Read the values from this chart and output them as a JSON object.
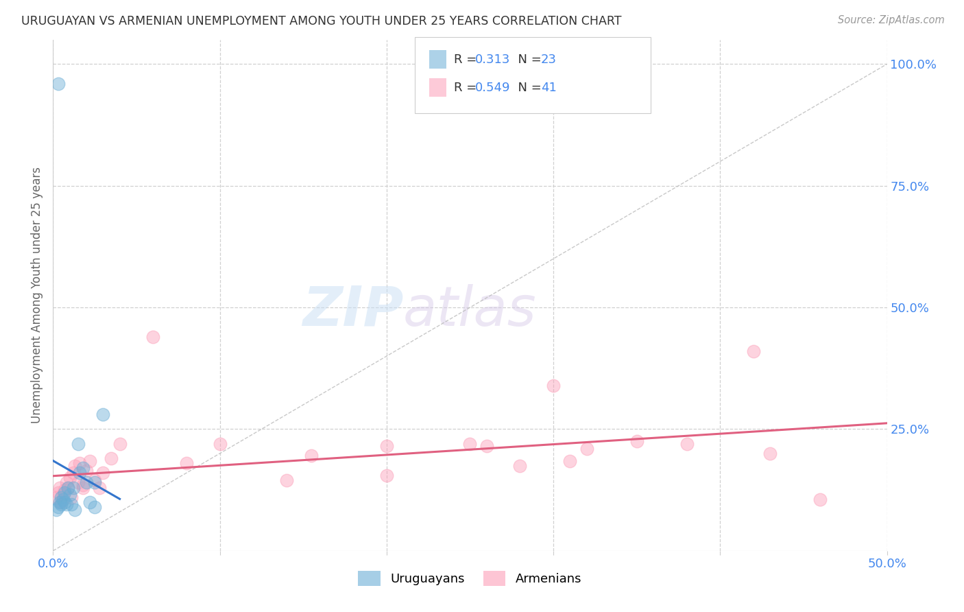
{
  "title": "URUGUAYAN VS ARMENIAN UNEMPLOYMENT AMONG YOUTH UNDER 25 YEARS CORRELATION CHART",
  "source": "Source: ZipAtlas.com",
  "ylabel": "Unemployment Among Youth under 25 years",
  "xmin": 0.0,
  "xmax": 0.5,
  "ymin": 0.0,
  "ymax": 1.05,
  "xtick_positions": [
    0.0,
    0.1,
    0.2,
    0.3,
    0.4,
    0.5
  ],
  "xtick_labels": [
    "0.0%",
    "",
    "",
    "",
    "",
    "50.0%"
  ],
  "yticks_right": [
    0.25,
    0.5,
    0.75,
    1.0
  ],
  "ytick_labels_right": [
    "25.0%",
    "50.0%",
    "75.0%",
    "100.0%"
  ],
  "uruguayan_x": [
    0.002,
    0.003,
    0.004,
    0.005,
    0.005,
    0.006,
    0.007,
    0.007,
    0.008,
    0.009,
    0.01,
    0.011,
    0.012,
    0.013,
    0.015,
    0.016,
    0.018,
    0.02,
    0.022,
    0.025,
    0.03,
    0.025,
    0.003
  ],
  "uruguayan_y": [
    0.085,
    0.09,
    0.1,
    0.095,
    0.11,
    0.105,
    0.1,
    0.12,
    0.095,
    0.13,
    0.115,
    0.095,
    0.13,
    0.085,
    0.22,
    0.16,
    0.17,
    0.14,
    0.1,
    0.09,
    0.28,
    0.14,
    0.96
  ],
  "armenian_x": [
    0.002,
    0.003,
    0.004,
    0.005,
    0.006,
    0.007,
    0.008,
    0.009,
    0.01,
    0.011,
    0.012,
    0.013,
    0.015,
    0.016,
    0.018,
    0.02,
    0.022,
    0.025,
    0.028,
    0.03,
    0.035,
    0.04,
    0.06,
    0.08,
    0.1,
    0.155,
    0.2,
    0.25,
    0.3,
    0.32,
    0.38,
    0.42,
    0.018,
    0.14,
    0.2,
    0.28,
    0.26,
    0.31,
    0.35,
    0.43,
    0.46
  ],
  "armenian_y": [
    0.11,
    0.12,
    0.13,
    0.1,
    0.115,
    0.125,
    0.14,
    0.13,
    0.15,
    0.11,
    0.16,
    0.175,
    0.14,
    0.18,
    0.135,
    0.165,
    0.185,
    0.145,
    0.13,
    0.16,
    0.19,
    0.22,
    0.44,
    0.18,
    0.22,
    0.195,
    0.215,
    0.22,
    0.34,
    0.21,
    0.22,
    0.41,
    0.13,
    0.145,
    0.155,
    0.175,
    0.215,
    0.185,
    0.225,
    0.2,
    0.105
  ],
  "uruguayan_color": "#6baed6",
  "armenian_color": "#fc9fb8",
  "uruguayan_line_color": "#3375cc",
  "armenian_line_color": "#e06080",
  "r_uruguayan": "0.313",
  "n_uruguayan": "23",
  "r_armenian": "0.549",
  "n_armenian": "41",
  "watermark_zip": "ZIP",
  "watermark_atlas": "atlas",
  "background_color": "#ffffff",
  "grid_color": "#d0d0d0",
  "title_color": "#333333",
  "axis_label_color": "#666666",
  "right_axis_color": "#4488ee",
  "bottom_axis_color": "#4488ee",
  "legend_text_color": "#333333",
  "value_color": "#4488ee"
}
